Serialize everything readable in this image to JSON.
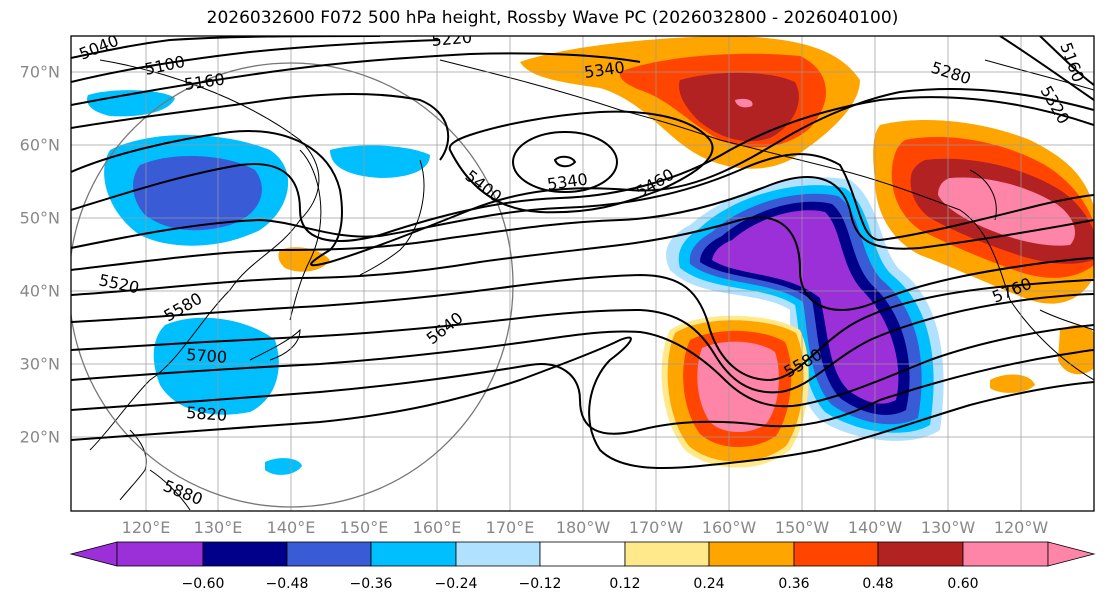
{
  "title": "2026032600 F072 500 hPa height, Rossby Wave PC (2026032800 - 2026040100)",
  "lat_labels": [
    "70°N",
    "60°N",
    "50°N",
    "40°N",
    "30°N",
    "20°N"
  ],
  "lon_labels": [
    "120°E",
    "130°E",
    "140°E",
    "150°E",
    "160°E",
    "170°E",
    "180°W",
    "170°W",
    "160°W",
    "150°W",
    "140°W",
    "130°W",
    "120°W"
  ],
  "colorbar": {
    "tick_labels": [
      "−0.60",
      "−0.48",
      "−0.36",
      "−0.24",
      "−0.12",
      "0.12",
      "0.24",
      "0.36",
      "0.48",
      "0.60"
    ],
    "colors": [
      "#9b30d9",
      "#00008b",
      "#3a5bd6",
      "#00bfff",
      "#b0e2ff",
      "#ffffff",
      "#ffe98a",
      "#ffa500",
      "#ff4500",
      "#b22222",
      "#ff85a8"
    ]
  },
  "contour_labels": [
    "5040",
    "5100",
    "5160",
    "5220",
    "5280",
    "5320",
    "5160",
    "5340",
    "5340",
    "5400",
    "5460",
    "5520",
    "5580",
    "5640",
    "5700",
    "5760",
    "5820",
    "5880",
    "5580"
  ]
}
